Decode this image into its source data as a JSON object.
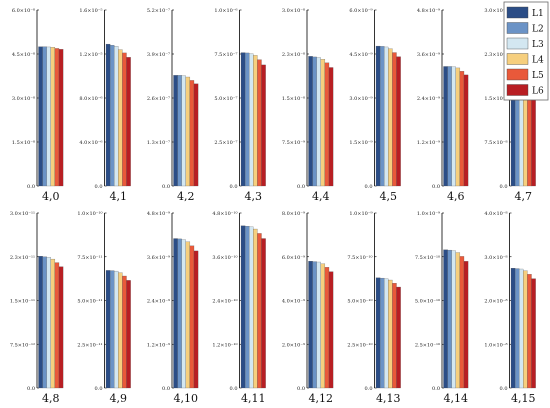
{
  "chart_data": {
    "type": "bar",
    "series_names": [
      "L1",
      "L2",
      "L3",
      "L4",
      "L5",
      "L6"
    ],
    "colors": [
      "#2b4d86",
      "#6b93c6",
      "#d3e7f1",
      "#f6cf7e",
      "#e9593a",
      "#b81e23"
    ],
    "legend_position": "top-right",
    "grid": false,
    "panels": [
      {
        "category": "4,0",
        "ylim": [
          0,
          6e-08
        ],
        "ticks": [
          "0.0",
          "1.5×10⁻⁸",
          "3.0×10⁻⁸",
          "4.5×10⁻⁸",
          "6.0×10⁻⁸"
        ],
        "values": [
          4.75e-08,
          4.75e-08,
          4.74e-08,
          4.73e-08,
          4.69e-08,
          4.66e-08
        ]
      },
      {
        "category": "4,1",
        "ylim": [
          0,
          1.6e-05
        ],
        "ticks": [
          "0.0",
          "4.0×10⁻⁶",
          "8.0×10⁻⁶",
          "1.2×10⁻⁵",
          "1.6×10⁻⁵"
        ],
        "values": [
          1.29e-05,
          1.28e-05,
          1.27e-05,
          1.24e-05,
          1.21e-05,
          1.17e-05
        ]
      },
      {
        "category": "4,2",
        "ylim": [
          0,
          5.2e-07
        ],
        "ticks": [
          "0.0",
          "1.3×10⁻⁷",
          "2.6×10⁻⁷",
          "3.9×10⁻⁷",
          "5.2×10⁻⁷"
        ],
        "values": [
          3.27e-07,
          3.27e-07,
          3.26e-07,
          3.22e-07,
          3.12e-07,
          3.02e-07
        ]
      },
      {
        "category": "4,3",
        "ylim": [
          0,
          1e-06
        ],
        "ticks": [
          "0.0",
          "2.5×10⁻⁷",
          "5.0×10⁻⁷",
          "7.5×10⁻⁷",
          "1.0×10⁻⁶"
        ],
        "values": [
          7.58e-07,
          7.56e-07,
          7.52e-07,
          7.42e-07,
          7.18e-07,
          6.88e-07
        ]
      },
      {
        "category": "4,4",
        "ylim": [
          0,
          3e-08
        ],
        "ticks": [
          "0.0",
          "7.5×10⁻⁹",
          "1.5×10⁻⁸",
          "2.3×10⁻⁸",
          "3.0×10⁻⁸"
        ],
        "values": [
          2.21e-08,
          2.2e-08,
          2.19e-08,
          2.16e-08,
          2.1e-08,
          2.02e-08
        ]
      },
      {
        "category": "4,5",
        "ylim": [
          0,
          6e-09
        ],
        "ticks": [
          "0.0",
          "1.5×10⁻⁹",
          "3.0×10⁻⁹",
          "4.5×10⁻⁹",
          "6.0×10⁻⁹"
        ],
        "values": [
          4.77e-09,
          4.76e-09,
          4.74e-09,
          4.68e-09,
          4.55e-09,
          4.41e-09
        ]
      },
      {
        "category": "4,6",
        "ylim": [
          0,
          4.8e-09
        ],
        "ticks": [
          "0.0",
          "1.2×10⁻⁹",
          "2.4×10⁻⁹",
          "3.6×10⁻⁹",
          "4.8×10⁻⁹"
        ],
        "values": [
          3.26e-09,
          3.26e-09,
          3.25e-09,
          3.22e-09,
          3.13e-09,
          3.03e-09
        ]
      },
      {
        "category": "4,7",
        "ylim": [
          0,
          3e-07
        ],
        "ticks": [
          "0.0",
          "7.5×10⁻⁸",
          "1.5×10⁻⁷",
          "2.3×10⁻⁷",
          "3.0×10⁻⁷"
        ],
        "values": [
          1.87e-07,
          1.87e-07,
          1.86e-07,
          1.84e-07,
          1.8e-07,
          1.74e-07
        ]
      },
      {
        "category": "4,8",
        "ylim": [
          0,
          3e-11
        ],
        "ticks": [
          "0.0",
          "7.5×10⁻¹²",
          "1.5×10⁻¹¹",
          "2.3×10⁻¹¹",
          "3.0×10⁻¹¹"
        ],
        "values": [
          2.26e-11,
          2.25e-11,
          2.24e-11,
          2.21e-11,
          2.15e-11,
          2.08e-11
        ]
      },
      {
        "category": "4,9",
        "ylim": [
          0,
          1e-10
        ],
        "ticks": [
          "0.0",
          "2.5×10⁻¹¹",
          "5.0×10⁻¹¹",
          "7.5×10⁻¹¹",
          "1.0×10⁻¹⁰"
        ],
        "values": [
          6.72e-11,
          6.71e-11,
          6.68e-11,
          6.59e-11,
          6.4e-11,
          6.15e-11
        ]
      },
      {
        "category": "4,10",
        "ylim": [
          0,
          4.8e-09
        ],
        "ticks": [
          "0.0",
          "1.2×10⁻⁹",
          "2.4×10⁻⁹",
          "3.6×10⁻⁹",
          "4.8×10⁻⁹"
        ],
        "values": [
          4.1e-09,
          4.09e-09,
          4.07e-09,
          4.01e-09,
          3.9e-09,
          3.76e-09
        ]
      },
      {
        "category": "4,11",
        "ylim": [
          0,
          4.8e-10
        ],
        "ticks": [
          "0.0",
          "1.2×10⁻¹⁰",
          "2.4×10⁻¹⁰",
          "3.6×10⁻¹⁰",
          "4.8×10⁻¹⁰"
        ],
        "values": [
          4.45e-10,
          4.44e-10,
          4.42e-10,
          4.36e-10,
          4.24e-10,
          4.1e-10
        ]
      },
      {
        "category": "4,12",
        "ylim": [
          0,
          8e-09
        ],
        "ticks": [
          "0.0",
          "2.0×10⁻⁹",
          "4.0×10⁻⁹",
          "6.0×10⁻⁹",
          "8.0×10⁻⁹"
        ],
        "values": [
          5.8e-09,
          5.78e-09,
          5.76e-09,
          5.68e-09,
          5.52e-09,
          5.32e-09
        ]
      },
      {
        "category": "4,13",
        "ylim": [
          0,
          1e-09
        ],
        "ticks": [
          "0.0",
          "2.5×10⁻¹⁰",
          "5.0×10⁻¹⁰",
          "7.5×10⁻¹⁰",
          "1.0×10⁻⁹"
        ],
        "values": [
          6.3e-10,
          6.28e-10,
          6.25e-10,
          6.17e-10,
          5.99e-10,
          5.77e-10
        ]
      },
      {
        "category": "4,14",
        "ylim": [
          0,
          1e-09
        ],
        "ticks": [
          "0.0",
          "2.5×10⁻¹⁰",
          "5.0×10⁻¹⁰",
          "7.5×10⁻¹⁰",
          "1.0×10⁻⁹"
        ],
        "values": [
          7.9e-10,
          7.88e-10,
          7.85e-10,
          7.74e-10,
          7.52e-10,
          7.24e-10
        ]
      },
      {
        "category": "4,15",
        "ylim": [
          0,
          4e-08
        ],
        "ticks": [
          "0.0",
          "1.0×10⁻⁸",
          "2.0×10⁻⁸",
          "3.0×10⁻⁸",
          "4.0×10⁻⁸"
        ],
        "values": [
          2.74e-08,
          2.73e-08,
          2.72e-08,
          2.68e-08,
          2.6e-08,
          2.5e-08
        ]
      }
    ]
  }
}
